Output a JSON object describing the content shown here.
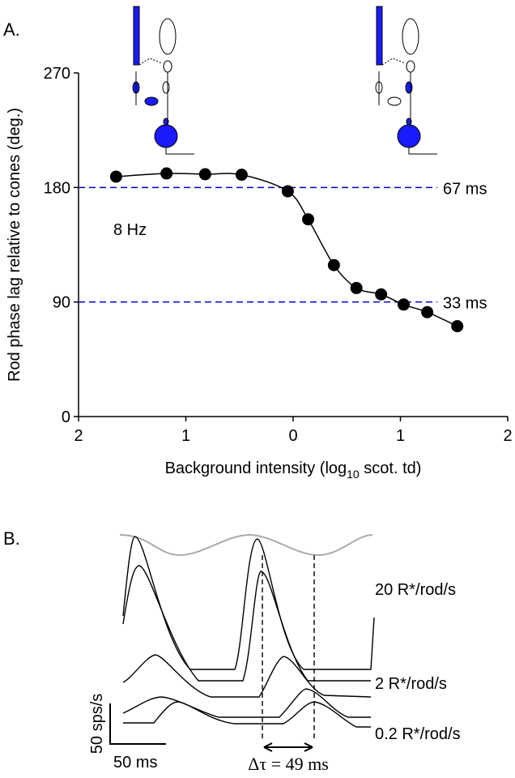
{
  "chart_data": {
    "type": "line",
    "title": "A.",
    "ylabel": "Rod phase lag relative to cones (deg.)",
    "xlabel": [
      "Background intensity (log",
      "10",
      " scot. td)"
    ],
    "x": [
      -1.65,
      -1.18,
      -0.82,
      -0.48,
      -0.05,
      0.14,
      0.38,
      0.59,
      0.82,
      1.03,
      1.25,
      1.53
    ],
    "values": [
      188.5,
      191,
      190.4,
      190,
      177,
      155,
      119,
      101,
      96,
      88,
      82,
      71
    ],
    "color": "#000000",
    "xlim": [
      -2,
      2
    ],
    "ylim": [
      0,
      270
    ],
    "xticks": [
      {
        "value": -2,
        "label": "2"
      },
      {
        "value": -1,
        "label": "1"
      },
      0,
      {
        "value": 1,
        "label": "1"
      },
      2
    ],
    "yticks": [
      0,
      90,
      180,
      270
    ],
    "reference_lines": [
      {
        "value": 180,
        "label": "67 ms",
        "color": "#0000cc"
      },
      {
        "value": 90,
        "label": "33 ms",
        "color": "#0000cc"
      }
    ],
    "annotation": "8 Hz"
  },
  "panel_b": {
    "title": "B.",
    "trace_labels": [
      "20 R*/rod/s",
      "2 R*/rod/s",
      "0.2 R*/rod/s"
    ],
    "scale_y": "50 sps/s",
    "scale_x": "50 ms",
    "delay": "Δτ = 49 ms"
  }
}
